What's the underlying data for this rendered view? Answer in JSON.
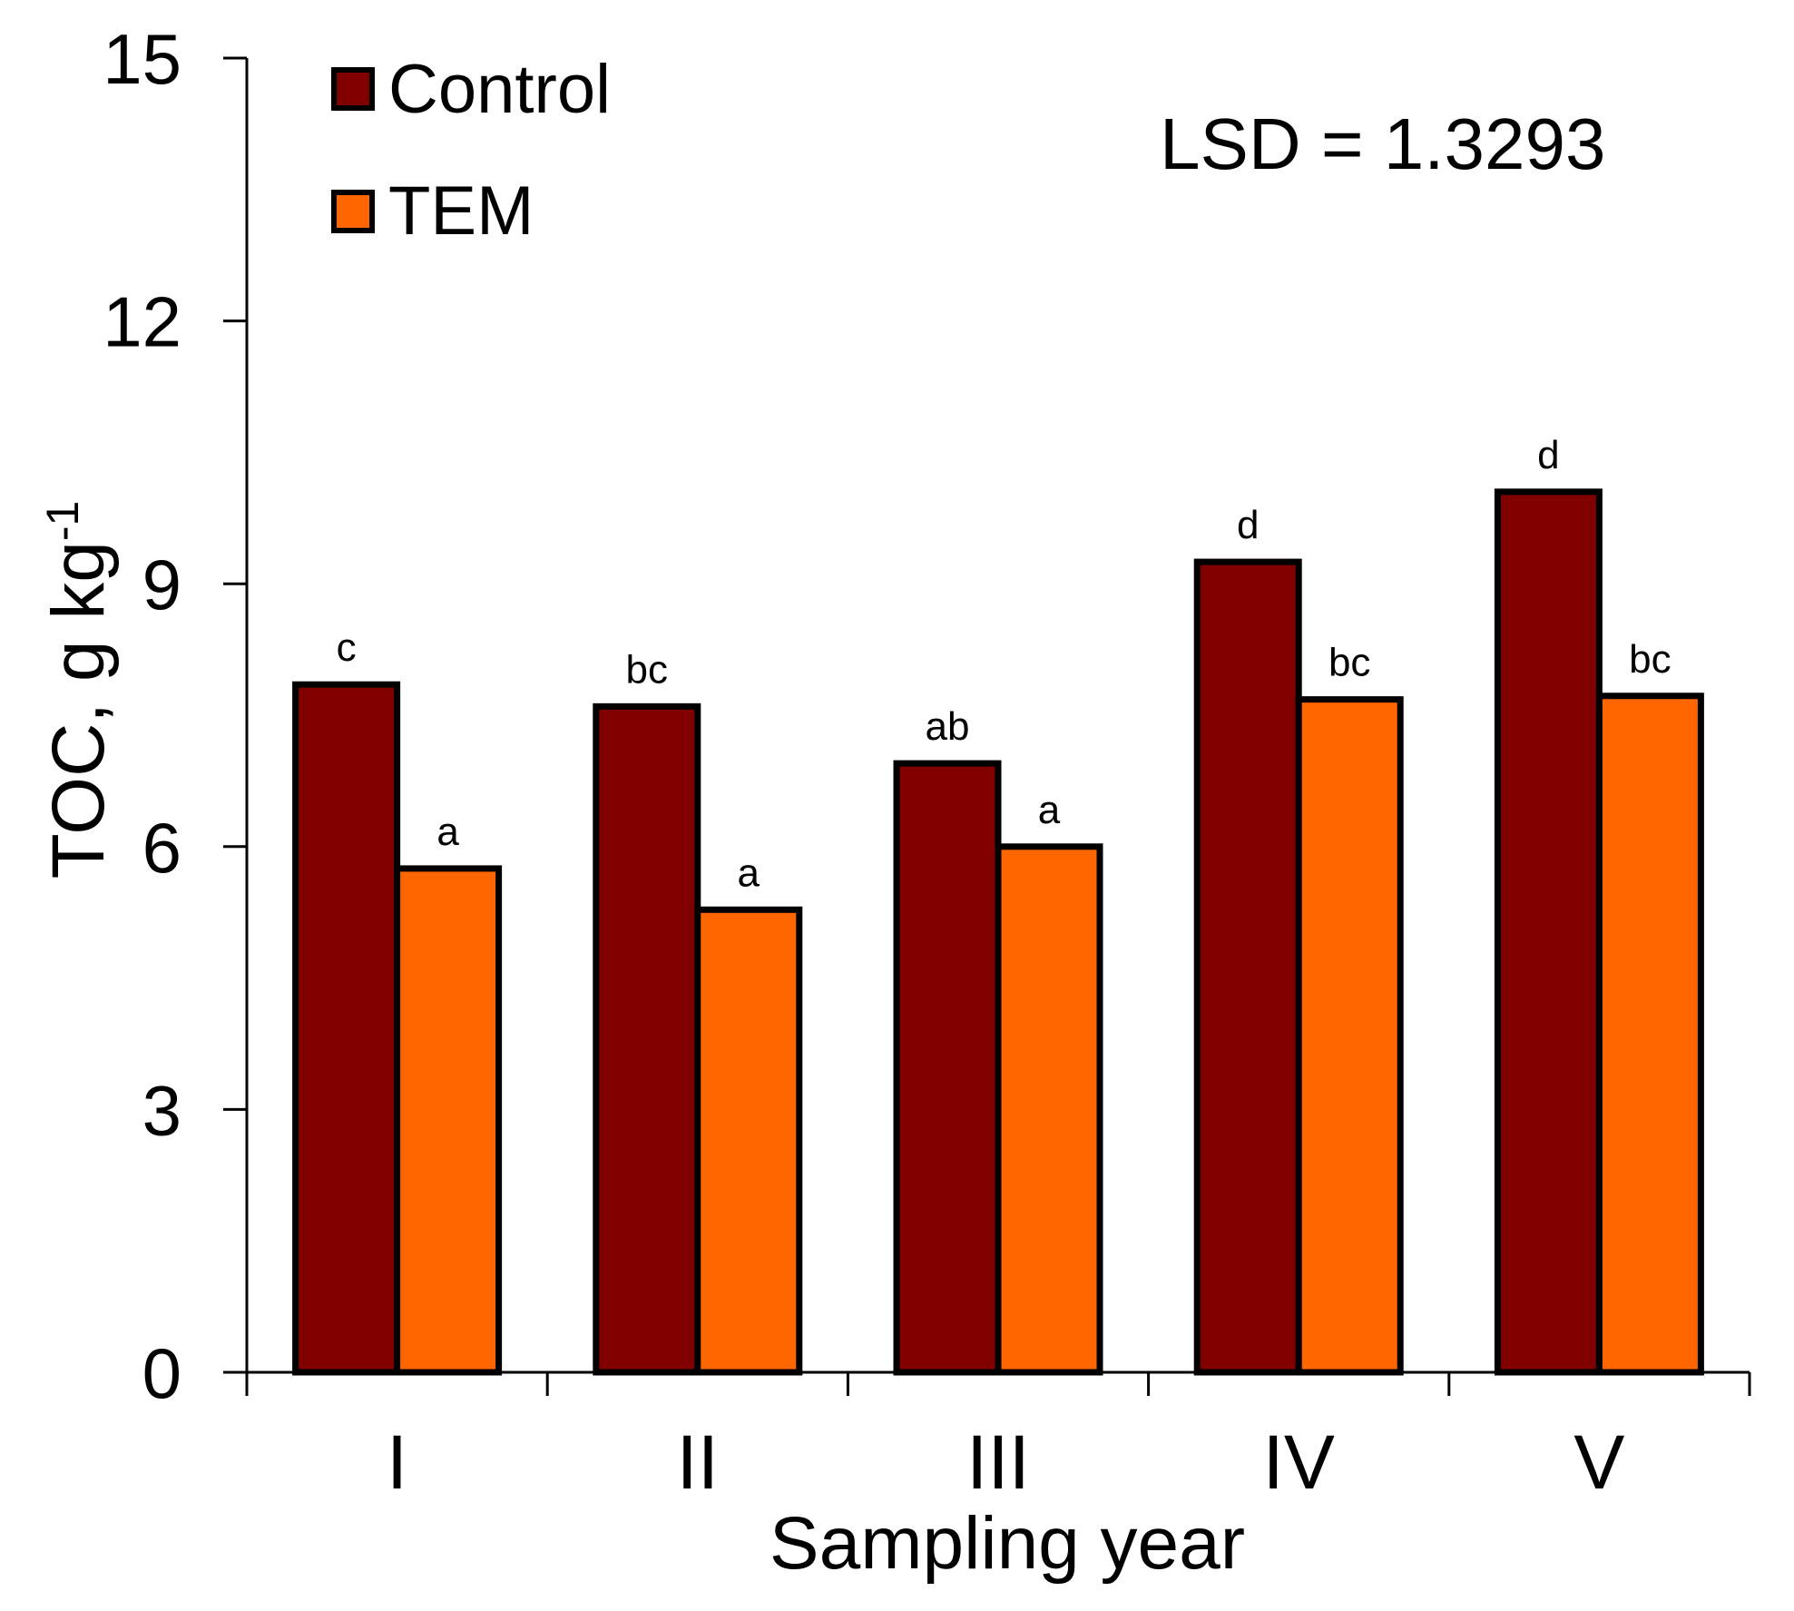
{
  "chart_data": {
    "type": "bar",
    "title": "",
    "xlabel": "Sampling year",
    "ylabel": "TOC, g kg",
    "ylabel_superscript": "-1",
    "ylim": [
      0,
      15
    ],
    "yticks": [
      "0",
      "3",
      "6",
      "9",
      "12",
      "15"
    ],
    "ytick_values": [
      0,
      3,
      6,
      9,
      12,
      15
    ],
    "categories": [
      "I",
      "II",
      "III",
      "IV",
      "V"
    ],
    "series": [
      {
        "name": "Control",
        "color": "#800000",
        "values": [
          7.85,
          7.6,
          6.95,
          9.25,
          10.05
        ],
        "letters": [
          "c",
          "bc",
          "ab",
          "d",
          "d"
        ]
      },
      {
        "name": "TEM",
        "color": "#ff6600",
        "values": [
          5.75,
          5.28,
          6.0,
          7.68,
          7.72
        ],
        "letters": [
          "a",
          "a",
          "a",
          "bc",
          "bc"
        ]
      }
    ],
    "legend": {
      "position": "top-left"
    },
    "annotation": "LSD = 1.3293",
    "grid": false
  }
}
